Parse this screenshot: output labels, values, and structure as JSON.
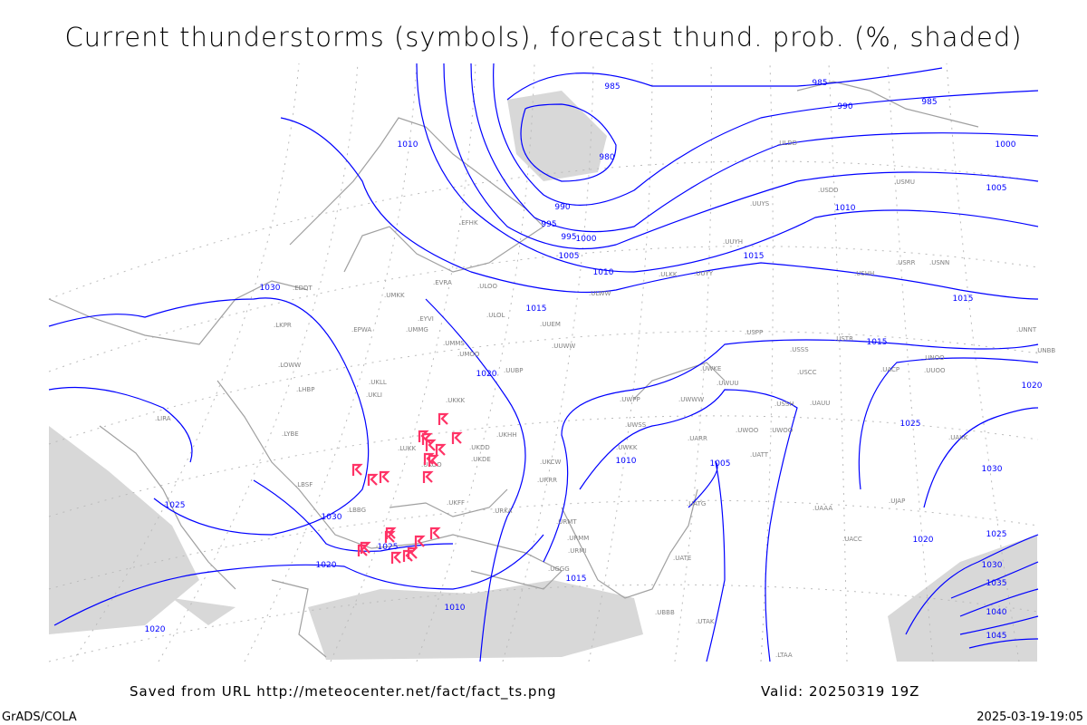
{
  "title": "Current thunderstorms (symbols), forecast thund. prob. (%, shaded)",
  "footer": {
    "source": "Saved from URL http://meteocenter.net/fact/fact_ts.png",
    "valid": "Valid: 20250319 19Z",
    "software": "GrADS/COLA",
    "timestamp": "2025-03-19-19:05"
  },
  "colors": {
    "isobar": "#0000ff",
    "coast": "#a0a0a0",
    "storm": "#ff3366",
    "shade": "#d8d8d8",
    "station": "#808080"
  },
  "storm_symbol": "thunderstorm-flag",
  "isobar_labels": [
    "985",
    "985",
    "985",
    "990",
    "995",
    "1000",
    "1005",
    "1010",
    "1015",
    "1020",
    "1025",
    "1030",
    "1010",
    "1015",
    "1020",
    "1025",
    "1030",
    "1005",
    "1010",
    "1015",
    "1020",
    "1025",
    "1030",
    "1035",
    "1040",
    "1045",
    "1000",
    "1005",
    "1010",
    "1015",
    "1020",
    "1025",
    "1030",
    "980",
    "990",
    "995",
    "1010",
    "1015",
    "1020"
  ],
  "stations": [
    "EFHK",
    "ULOO",
    "ULOL",
    "UUEM",
    "UMMG",
    "UMMS",
    "UMOO",
    "UUBP",
    "UKKK",
    "UKHH",
    "UKDD",
    "UKDE",
    "UKOO",
    "LUKK",
    "UKFF",
    "URKA",
    "URRR",
    "URMT",
    "URMM",
    "URMI",
    "LBBG",
    "LBSF",
    "LYBE",
    "LHBP",
    "LKPR",
    "LOWW",
    "LIRA",
    "EPWA",
    "EYVI",
    "UKLL",
    "UKLI",
    "EVRA",
    "EDDT",
    "ULWW",
    "ULKK",
    "UUYY",
    "UUYH",
    "USHH",
    "USRR",
    "USNN",
    "UUYS",
    "USDD",
    "USMU",
    "ULDD",
    "USSS",
    "USCC",
    "USTR",
    "UNOO",
    "USPP",
    "UWPP",
    "UWSS",
    "UWKK",
    "UWKE",
    "UWWW",
    "UWUU",
    "UARR",
    "UATT",
    "UWOO",
    "UATG",
    "UATE",
    "UTAK",
    "UBBB",
    "UGGG",
    "LTAA",
    "UAAA",
    "UACC",
    "UAKK",
    "UJAP",
    "UKCW",
    "UWOO",
    "USSH",
    "UAUU",
    "UACP",
    "UMKK",
    "UUOO",
    "UUWW",
    "UNNT",
    "UNBB"
  ]
}
